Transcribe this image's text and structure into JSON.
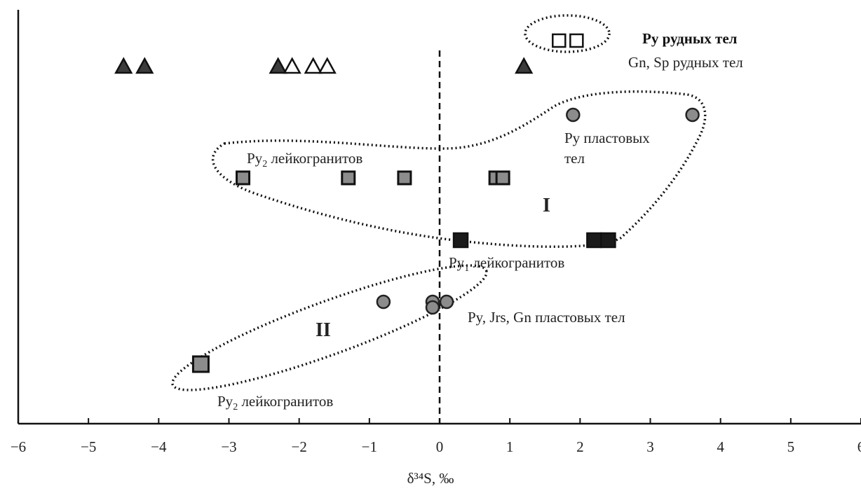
{
  "chart_data": {
    "type": "scatter",
    "xlabel": "δ³⁴S, ‰",
    "xlim": [
      -6,
      6
    ],
    "x_ticks": [
      "−6",
      "−5",
      "−4",
      "−3",
      "−2",
      "−1",
      "0",
      "1",
      "2",
      "3",
      "4",
      "5",
      "6"
    ],
    "grid": false,
    "reference_line": {
      "x": 0,
      "style": "dashed"
    },
    "marker_colors": {
      "gray": "#8c8c8c",
      "black": "#1a1a1a",
      "white": "#ffffff"
    },
    "series": [
      {
        "marker": "triangle-filled",
        "row": 1,
        "x": [
          -4.5,
          -4.2,
          -2.3,
          1.2
        ]
      },
      {
        "marker": "triangle-open",
        "row": 1,
        "x": [
          -2.1,
          -1.8,
          -1.6
        ]
      },
      {
        "marker": "square-open",
        "row": 0,
        "x": [
          1.7,
          1.95
        ]
      },
      {
        "marker": "circle-gray",
        "row": 2,
        "x": [
          1.9,
          3.6
        ]
      },
      {
        "marker": "square-gray",
        "row": 3,
        "x": [
          -2.8,
          -1.3,
          -0.5,
          0.8,
          0.9
        ]
      },
      {
        "marker": "square-black",
        "row": 4,
        "x": [
          0.3,
          2.2,
          2.4
        ]
      },
      {
        "marker": "circle-gray",
        "row": 5,
        "x": [
          -0.8,
          -0.1,
          0.1,
          -0.1
        ]
      },
      {
        "marker": "square-gray",
        "row": 6,
        "x": [
          -3.4
        ]
      }
    ],
    "annotations": {
      "py_ore": "Py рудных тел",
      "gn_sp_ore": "Gn, Sp рудных тел",
      "py_layer_1": "Py пластовых",
      "py_layer_2": "тел",
      "py2_leuco_upper": "Py",
      "py2_leuco_upper_sub": "2",
      "py2_leuco_upper_rest": " лейкогранитов",
      "py1_leuco": "Py",
      "py1_leuco_sub": "1",
      "py1_leuco_rest": " лейкогранитов",
      "py_jrs_gn": "Py, Jrs, Gn пластовых тел",
      "py2_leuco_lower": "Py",
      "py2_leuco_lower_sub": "2",
      "py2_leuco_lower_rest": " лейкогранитов",
      "group_1": "I",
      "group_2": "II"
    }
  }
}
